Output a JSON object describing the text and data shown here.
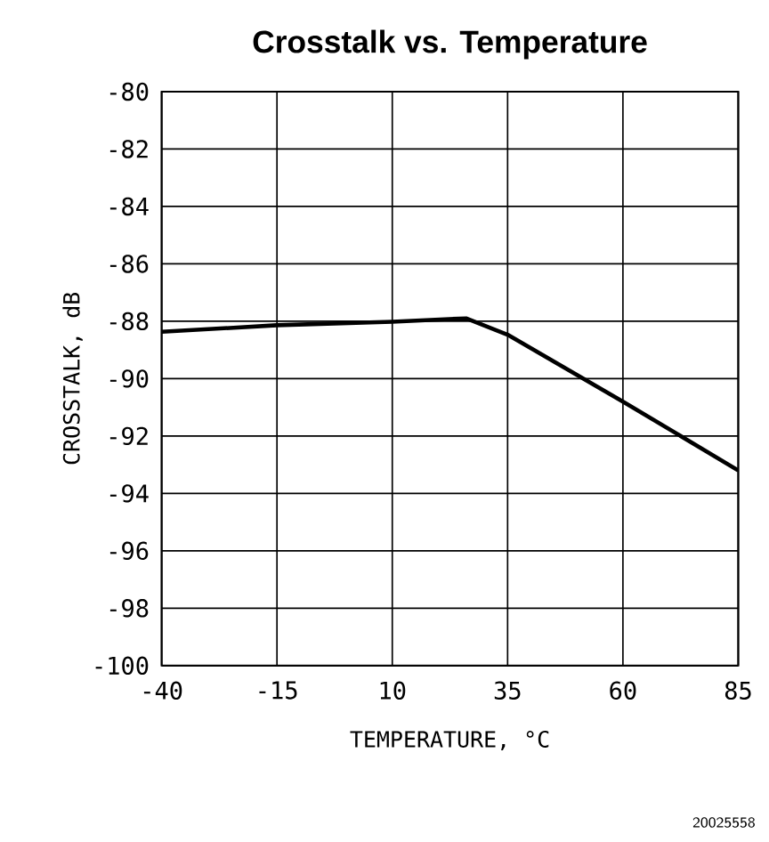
{
  "chart_data": {
    "type": "line",
    "title": "Crosstalk vs. Temperature",
    "xlabel": "TEMPERATURE, °C",
    "ylabel": "CROSSTALK, dB",
    "annotations": [
      "20025558"
    ],
    "x": [
      -40,
      -15,
      10,
      26,
      35,
      60,
      85
    ],
    "series": [
      {
        "color": "#000000",
        "values": [
          -88.37,
          -88.14,
          -88.02,
          -87.9,
          -88.47,
          -90.8,
          -93.2
        ]
      }
    ],
    "xlim": [
      -40,
      85
    ],
    "xticks": [
      -40,
      -15,
      10,
      35,
      60,
      85
    ],
    "ylim": [
      -100,
      -80
    ],
    "yticks": [
      -100,
      -98,
      -96,
      -94,
      -92,
      -90,
      -88,
      -86,
      -84,
      -82,
      -80
    ],
    "grid": true,
    "marker": "none",
    "line_style": "solid"
  }
}
